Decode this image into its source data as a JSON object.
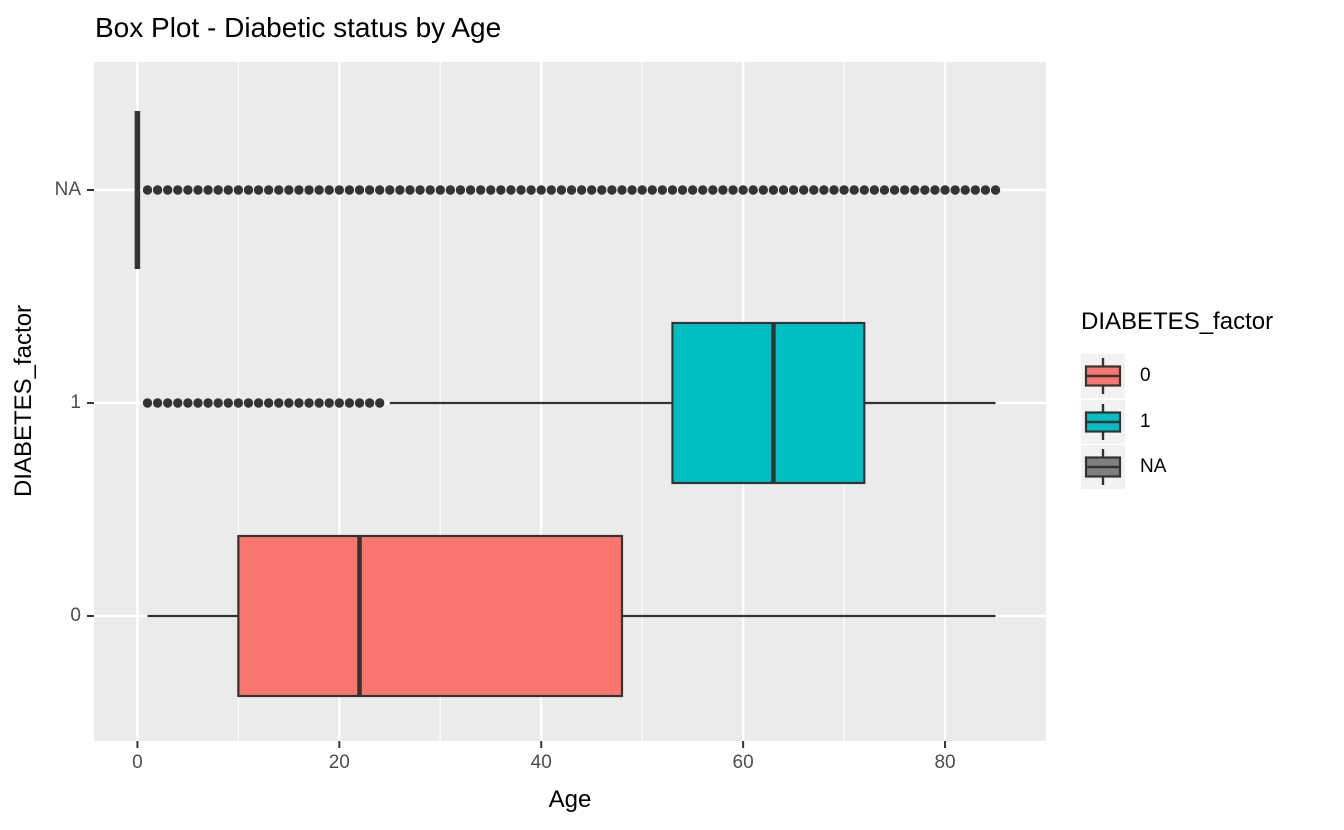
{
  "chart_data": {
    "type": "boxplot",
    "orientation": "horizontal",
    "title": "Box Plot - Diabetic status by Age",
    "xlabel": "Age",
    "ylabel": "DIABETES_factor",
    "xlim": [
      -4.3,
      90
    ],
    "x_ticks": [
      0,
      20,
      40,
      60,
      80
    ],
    "x_minor_ticks": [
      10,
      30,
      50,
      70
    ],
    "categories": [
      "0",
      "1",
      "NA"
    ],
    "grid": "white major and minor vertical gridlines plus white horizontal line per category on gray panel",
    "legend_position": "right",
    "series": [
      {
        "name": "0",
        "fill": "#F8766D",
        "whisker_min": 1,
        "q1": 10,
        "median": 22,
        "q3": 48,
        "whisker_max": 85,
        "outliers": []
      },
      {
        "name": "1",
        "fill": "#00BFC4",
        "whisker_min": 25,
        "q1": 53,
        "median": 63,
        "q3": 72,
        "whisker_max": 85,
        "outliers": [
          1,
          2,
          3,
          4,
          5,
          6,
          7,
          8,
          9,
          10,
          11,
          12,
          13,
          14,
          15,
          16,
          17,
          18,
          19,
          20,
          21,
          22,
          23,
          24
        ]
      },
      {
        "name": "NA",
        "fill": "#7F7F7F",
        "whisker_min": 0,
        "q1": 0,
        "median": 0,
        "q3": 0,
        "whisker_max": 0,
        "outliers": [
          1,
          2,
          3,
          4,
          5,
          6,
          7,
          8,
          9,
          10,
          11,
          12,
          13,
          14,
          15,
          16,
          17,
          18,
          19,
          20,
          21,
          22,
          23,
          24,
          25,
          26,
          27,
          28,
          29,
          30,
          31,
          32,
          33,
          34,
          35,
          36,
          37,
          38,
          39,
          40,
          41,
          42,
          43,
          44,
          45,
          46,
          47,
          48,
          49,
          50,
          51,
          52,
          53,
          54,
          55,
          56,
          57,
          58,
          59,
          60,
          61,
          62,
          63,
          64,
          65,
          66,
          67,
          68,
          69,
          70,
          71,
          72,
          73,
          74,
          75,
          76,
          77,
          78,
          79,
          80,
          81,
          82,
          83,
          84,
          85
        ]
      }
    ],
    "legend": {
      "title": "DIABETES_factor",
      "entries": [
        {
          "label": "0",
          "fill": "#F8766D"
        },
        {
          "label": "1",
          "fill": "#00BFC4"
        },
        {
          "label": "NA",
          "fill": "#7F7F7F"
        }
      ]
    },
    "colors": {
      "panel_bg": "#EBEBEB",
      "gridline": "#FFFFFF",
      "box_outline": "#333333",
      "outlier_point": "#333333",
      "tick_label": "#4D4D4D",
      "axis_text": "#000000",
      "legend_key_bg": "#F2F2F2"
    }
  }
}
